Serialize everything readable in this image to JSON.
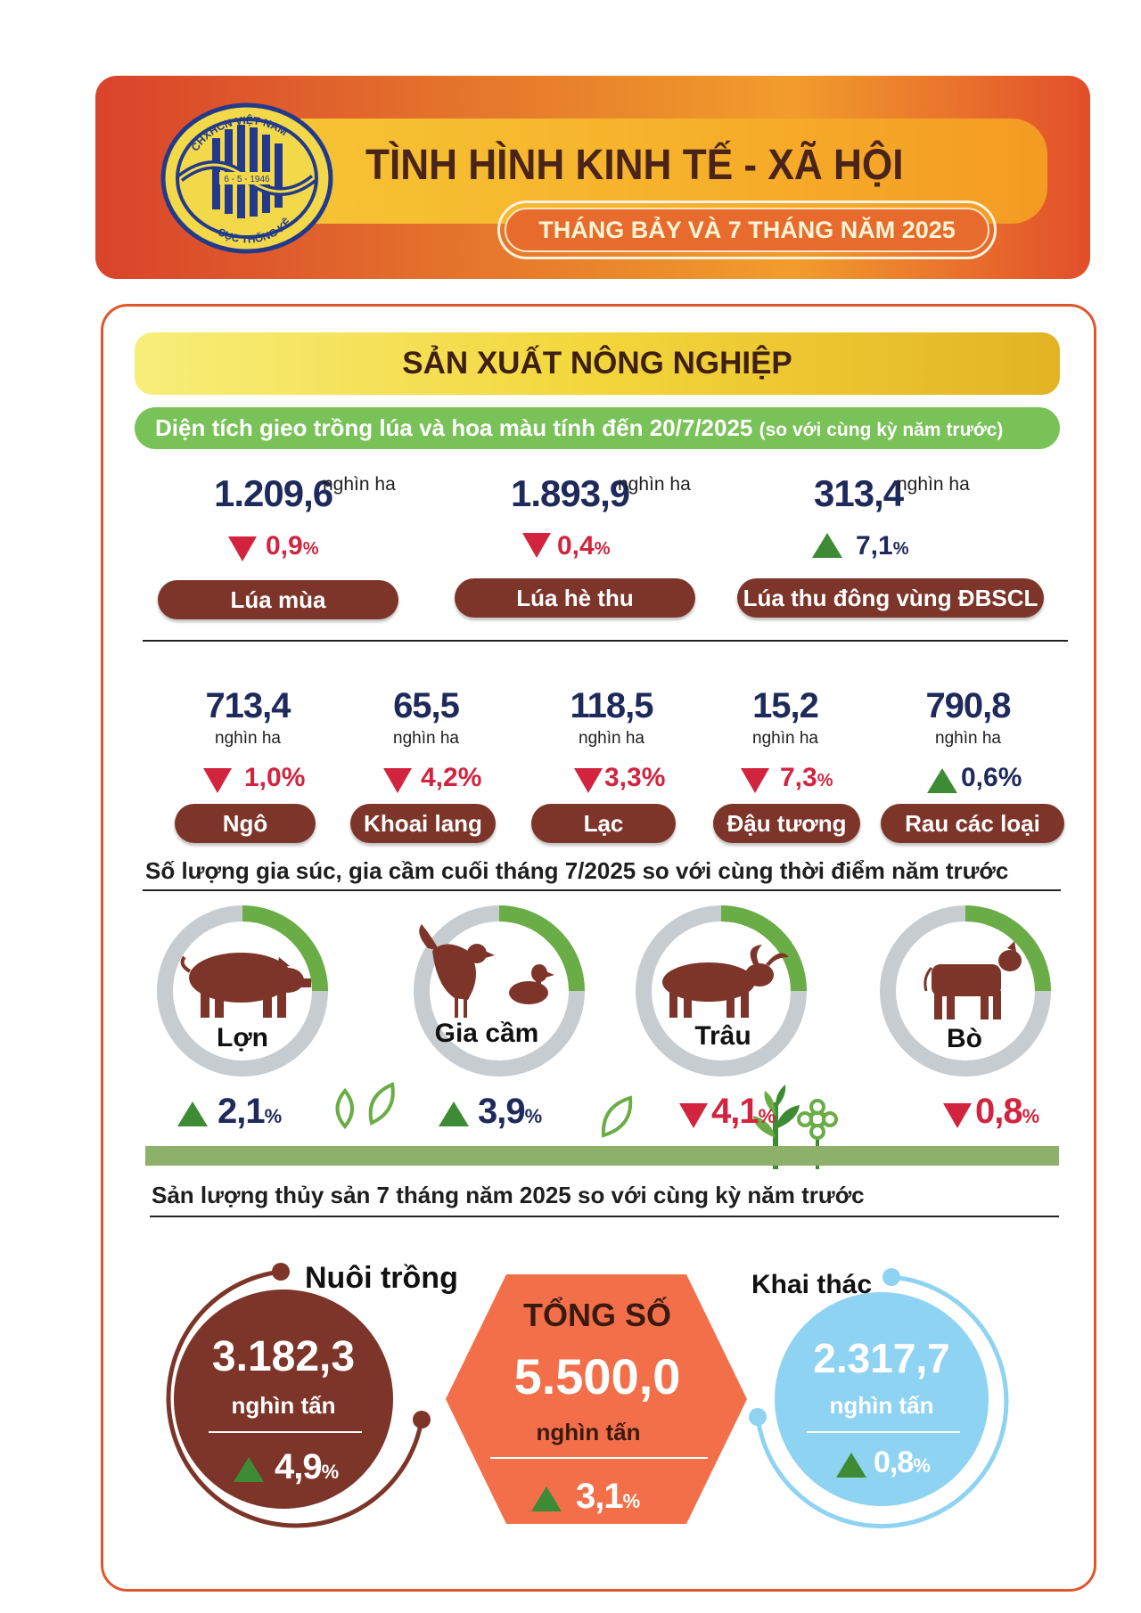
{
  "header": {
    "logo": {
      "top_text": "CHXHCN VIỆT NAM",
      "date": "6 - 5 - 1946",
      "bottom_text": "CỤC THỐNG KÊ"
    },
    "title": "TÌNH HÌNH KINH TẾ - XÃ HỘI",
    "subtitle": "THÁNG BẢY VÀ 7 THÁNG NĂM 2025"
  },
  "section": {
    "title": "SẢN XUẤT NÔNG NGHIỆP",
    "area_heading": "Diện tích gieo trồng lúa và hoa màu tính đến 20/7/2025",
    "area_heading_note": "(so với cùng kỳ năm trước)"
  },
  "rice": [
    {
      "value": "1.209,6",
      "unit": "nghìn ha",
      "change": "0,9",
      "pct": "%",
      "direction": "down",
      "label": "Lúa mùa"
    },
    {
      "value": "1.893,9",
      "unit": "nghìn ha",
      "change": "0,4",
      "pct": "%",
      "direction": "down",
      "label": "Lúa hè thu"
    },
    {
      "value": "313,4",
      "unit": "nghìn ha",
      "change": "7,1",
      "pct": "%",
      "direction": "up",
      "label": "Lúa thu đông vùng ĐBSCL"
    }
  ],
  "crops": [
    {
      "value": "713,4",
      "unit": "nghìn ha",
      "change": "1,0%",
      "direction": "down",
      "label": "Ngô"
    },
    {
      "value": "65,5",
      "unit": "nghìn ha",
      "change": "4,2%",
      "direction": "down",
      "label": "Khoai lang"
    },
    {
      "value": "118,5",
      "unit": "nghìn ha",
      "change": "3,3%",
      "direction": "down",
      "label": "Lạc"
    },
    {
      "value": "15,2",
      "unit": "nghìn ha",
      "change": "7,3",
      "pct": "%",
      "direction": "down",
      "label": "Đậu tương"
    },
    {
      "value": "790,8",
      "unit": "nghìn ha",
      "change": "0,6%",
      "direction": "up",
      "label": "Rau các loại"
    }
  ],
  "livestock_heading": "Số lượng gia súc, gia cầm cuối tháng 7/2025 so với cùng thời điểm năm trước",
  "livestock": [
    {
      "label": "Lợn",
      "change": "2,1",
      "pct": "%",
      "direction": "up",
      "icon": "pig-icon"
    },
    {
      "label": "Gia cầm",
      "change": "3,9",
      "pct": "%",
      "direction": "up",
      "icon": "poultry-icon"
    },
    {
      "label": "Trâu",
      "change": "4,1",
      "pct": "%",
      "direction": "down",
      "icon": "buffalo-icon"
    },
    {
      "label": "Bò",
      "change": "0,8",
      "pct": "%",
      "direction": "down",
      "icon": "cow-icon"
    }
  ],
  "fishery_heading": "Sản lượng thủy sản 7 tháng năm 2025 so với cùng kỳ năm trước",
  "fishery": {
    "farming": {
      "label": "Nuôi trồng",
      "value": "3.182,3",
      "unit": "nghìn tấn",
      "change": "4,9",
      "pct": "%",
      "direction": "up"
    },
    "total": {
      "label": "TỔNG SỐ",
      "value": "5.500,0",
      "unit": "nghìn tấn",
      "change": "3,1",
      "pct": "%",
      "direction": "up"
    },
    "catching": {
      "label": "Khai thác",
      "value": "2.317,7",
      "unit": "nghìn tấn",
      "change": "0,8",
      "pct": "%",
      "direction": "up"
    }
  },
  "colors": {
    "brown": "#7d3529",
    "orange": "#f26f4a",
    "light_blue": "#8fd3f2",
    "green": "#78c257",
    "red": "#d3243f",
    "navy": "#1f2a5c"
  }
}
